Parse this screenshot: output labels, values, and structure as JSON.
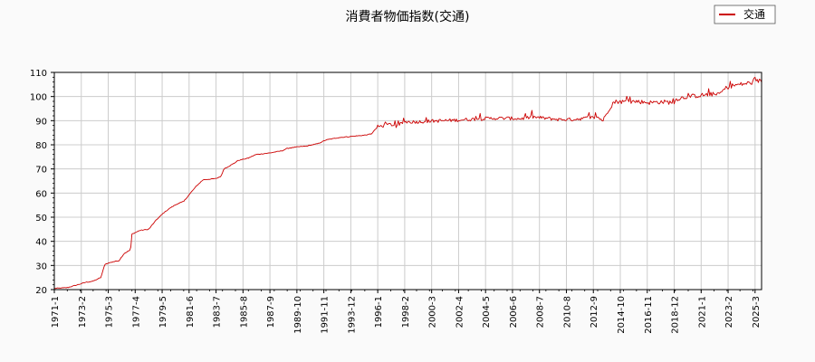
{
  "chart_data": {
    "type": "line",
    "title": "消費者物価指数(交通)",
    "xlabel": "",
    "ylabel": "",
    "ylim": [
      20,
      110
    ],
    "yticks": [
      20,
      30,
      40,
      50,
      60,
      70,
      80,
      90,
      100,
      110
    ],
    "xticks": [
      "1971-1",
      "1973-2",
      "1975-3",
      "1977-4",
      "1979-5",
      "1981-6",
      "1983-7",
      "1985-8",
      "1987-9",
      "1989-10",
      "1991-11",
      "1993-12",
      "1996-1",
      "1998-2",
      "2000-3",
      "2002-4",
      "2004-5",
      "2006-6",
      "2008-7",
      "2010-8",
      "2012-9",
      "2014-10",
      "2016-11",
      "2018-12",
      "2021-1",
      "2023-2",
      "2025-3"
    ],
    "grid": true,
    "legend_position": "top-right",
    "series": [
      {
        "name": "交通",
        "color": "#cc0000",
        "x": [
          1971.0,
          1972.0,
          1972.8,
          1973.4,
          1974.0,
          1974.6,
          1974.9,
          1975.5,
          1976.0,
          1976.4,
          1976.9,
          1977.0,
          1977.6,
          1978.3,
          1978.9,
          1979.5,
          1980.0,
          1980.5,
          1981.0,
          1981.6,
          1982.0,
          1982.5,
          1983.5,
          1983.9,
          1984.1,
          1984.8,
          1985.2,
          1986.0,
          1986.6,
          1987.5,
          1988.6,
          1989.0,
          1989.6,
          1990.5,
          1991.4,
          1992.0,
          1993.0,
          1994.0,
          1995.0,
          1995.5,
          1996.0,
          1997.0,
          1997.5,
          1998.0,
          1999.0,
          2000.0,
          2001.0,
          2002.0,
          2003.0,
          2004.0,
          2005.0,
          2006.0,
          2007.0,
          2008.0,
          2009.0,
          2010.0,
          2011.0,
          2012.0,
          2013.0,
          2013.4,
          2013.9,
          2014.2,
          2014.5,
          2015.0,
          2016.0,
          2017.0,
          2018.0,
          2018.9,
          2019.1,
          2020.0,
          2021.0,
          2021.9,
          2022.3,
          2022.9,
          2023.4,
          2024.0,
          2025.0,
          2025.4
        ],
        "y": [
          20.5,
          20.8,
          22.0,
          23.0,
          23.5,
          25.0,
          30.5,
          31.5,
          32.0,
          35.0,
          36.5,
          43.0,
          44.5,
          45.0,
          49.0,
          52.0,
          54.0,
          55.5,
          56.5,
          60.5,
          63.0,
          65.5,
          66.0,
          67.0,
          70.0,
          72.0,
          73.5,
          74.5,
          76.0,
          76.5,
          77.5,
          78.5,
          79.0,
          79.5,
          80.5,
          82.0,
          83.0,
          83.5,
          84.0,
          84.5,
          87.5,
          88.5,
          87.5,
          89.5,
          89.5,
          89.8,
          90.0,
          90.2,
          90.5,
          90.8,
          91.0,
          91.0,
          90.8,
          91.5,
          91.0,
          90.5,
          90.5,
          91.0,
          91.5,
          90.0,
          95.0,
          97.5,
          98.0,
          97.8,
          98.0,
          97.5,
          97.8,
          97.5,
          99.0,
          100.0,
          100.5,
          101.0,
          100.5,
          103.5,
          104.5,
          105.0,
          105.8,
          106.5
        ]
      }
    ]
  }
}
